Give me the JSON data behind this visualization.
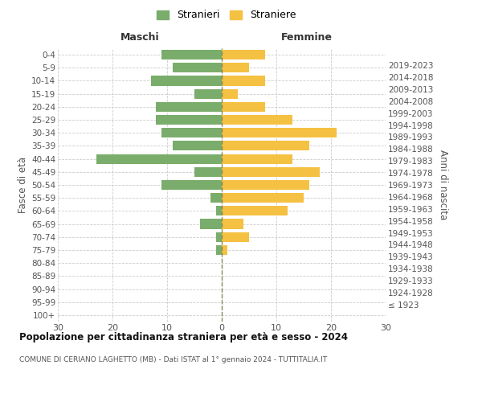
{
  "age_groups": [
    "100+",
    "95-99",
    "90-94",
    "85-89",
    "80-84",
    "75-79",
    "70-74",
    "65-69",
    "60-64",
    "55-59",
    "50-54",
    "45-49",
    "40-44",
    "35-39",
    "30-34",
    "25-29",
    "20-24",
    "15-19",
    "10-14",
    "5-9",
    "0-4"
  ],
  "birth_years": [
    "≤ 1923",
    "1924-1928",
    "1929-1933",
    "1934-1938",
    "1939-1943",
    "1944-1948",
    "1949-1953",
    "1954-1958",
    "1959-1963",
    "1964-1968",
    "1969-1973",
    "1974-1978",
    "1979-1983",
    "1984-1988",
    "1989-1993",
    "1994-1998",
    "1999-2003",
    "2004-2008",
    "2009-2013",
    "2014-2018",
    "2019-2023"
  ],
  "males": [
    0,
    0,
    0,
    0,
    0,
    1,
    1,
    4,
    1,
    2,
    11,
    5,
    23,
    9,
    11,
    12,
    12,
    5,
    13,
    9,
    11
  ],
  "females": [
    0,
    0,
    0,
    0,
    0,
    1,
    5,
    4,
    12,
    15,
    16,
    18,
    13,
    16,
    21,
    13,
    8,
    3,
    8,
    5,
    8
  ],
  "male_color": "#7aad6b",
  "female_color": "#f5c142",
  "male_label": "Stranieri",
  "female_label": "Straniere",
  "title": "Popolazione per cittadinanza straniera per età e sesso - 2024",
  "subtitle": "COMUNE DI CERIANO LAGHETTO (MB) - Dati ISTAT al 1° gennaio 2024 - TUTTITALIA.IT",
  "xlabel_left": "Maschi",
  "xlabel_right": "Femmine",
  "ylabel_left": "Fasce di età",
  "ylabel_right": "Anni di nascita",
  "xlim": 30,
  "bg_color": "#ffffff",
  "grid_color": "#cccccc",
  "bar_height": 0.75
}
